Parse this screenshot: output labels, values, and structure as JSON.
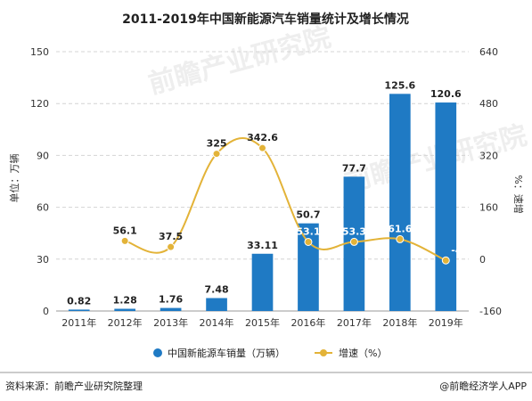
{
  "chart_data": {
    "title": "2011-2019年中国新能源汽车销量统计及增长情况",
    "type": "bar+line",
    "categories": [
      "2011年",
      "2012年",
      "2013年",
      "2014年",
      "2015年",
      "2016年",
      "2017年",
      "2018年",
      "2019年"
    ],
    "left_axis": {
      "label": "单位：万辆",
      "ylim": [
        0,
        150
      ],
      "ticks": [
        0,
        30,
        60,
        90,
        120,
        150
      ]
    },
    "right_axis": {
      "label": "%：速增",
      "ylim": [
        -160,
        640
      ],
      "ticks": [
        -160,
        0,
        160,
        320,
        480,
        640
      ]
    },
    "series": [
      {
        "name": "中国新能源车销量（万辆）",
        "type": "bar",
        "axis": "left",
        "color": "#1f7ac4",
        "values": [
          0.82,
          1.28,
          1.76,
          7.48,
          33.11,
          50.7,
          77.7,
          125.6,
          120.6
        ],
        "labels": [
          "0.82",
          "1.28",
          "1.76",
          "7.48",
          "33.11",
          "50.7",
          "77.7",
          "125.6",
          "120.6"
        ]
      },
      {
        "name": "增速（%）",
        "type": "line",
        "axis": "right",
        "color": "#e3b338",
        "x": [
          "2012年",
          "2013年",
          "2014年",
          "2015年",
          "2016年",
          "2017年",
          "2018年",
          "2019年"
        ],
        "values": [
          56.1,
          37.5,
          325,
          342.6,
          53.1,
          53.3,
          61.6,
          -4
        ],
        "labels": [
          "56.1",
          "37.5",
          "325",
          "342.6",
          "53.1",
          "53.3",
          "61.6",
          "-4"
        ]
      }
    ],
    "grid": "horizontal-dashed",
    "legend_position": "bottom"
  },
  "watermark": "前瞻产业研究院",
  "footer": {
    "source": "资料来源：前瞻产业研究院整理",
    "brand": "@前瞻经济学人APP"
  }
}
